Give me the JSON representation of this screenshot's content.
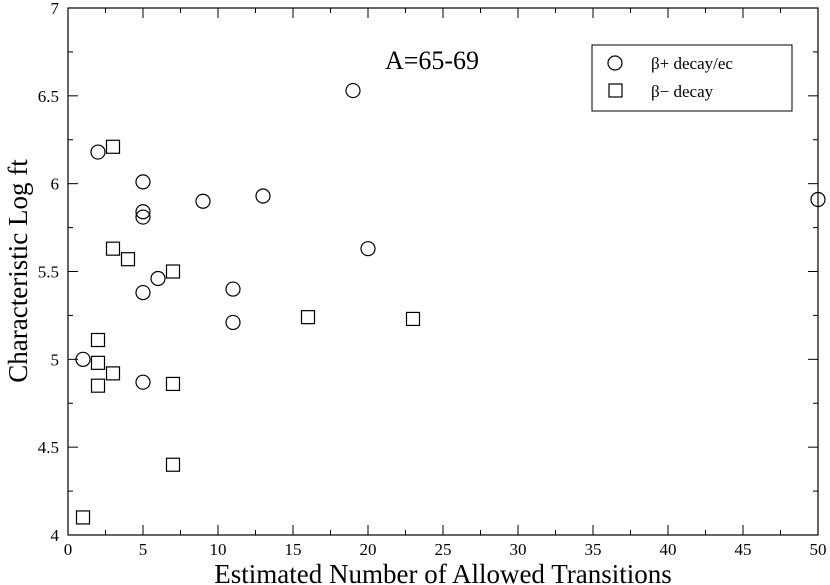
{
  "chart_data": {
    "type": "scatter",
    "title": "",
    "annotation": "A=65-69",
    "xlabel": "Estimated Number of Allowed Transitions",
    "ylabel": "Characteristic Log ft",
    "xlim": [
      0,
      50
    ],
    "ylim": [
      4,
      7
    ],
    "xticks": [
      0,
      5,
      10,
      15,
      20,
      25,
      30,
      35,
      40,
      45,
      50
    ],
    "yticks": [
      4,
      4.5,
      5,
      5.5,
      6,
      6.5,
      7
    ],
    "xtick_labels": [
      "0",
      "5",
      "10",
      "15",
      "20",
      "25",
      "30",
      "35",
      "40",
      "45",
      "50"
    ],
    "ytick_labels": [
      "4",
      "4.5",
      "5",
      "5.5",
      "6",
      "6.5",
      "7"
    ],
    "grid": false,
    "legend_position": "top-right",
    "series": [
      {
        "name": "β+ decay/ec",
        "marker": "circle",
        "x": [
          1,
          2,
          5,
          5,
          5,
          5,
          5,
          6,
          9,
          11,
          11,
          13,
          19,
          20,
          50
        ],
        "y": [
          5.0,
          6.18,
          6.01,
          5.84,
          5.81,
          5.38,
          4.87,
          5.46,
          5.9,
          5.4,
          5.21,
          5.93,
          6.53,
          5.63,
          5.91
        ]
      },
      {
        "name": "β− decay",
        "marker": "square",
        "x": [
          1,
          2,
          2,
          2,
          3,
          3,
          3,
          4,
          7,
          7,
          7,
          16,
          23
        ],
        "y": [
          4.1,
          5.11,
          4.98,
          4.85,
          6.21,
          5.63,
          4.92,
          5.57,
          5.5,
          4.86,
          4.4,
          5.24,
          5.23
        ]
      }
    ]
  }
}
